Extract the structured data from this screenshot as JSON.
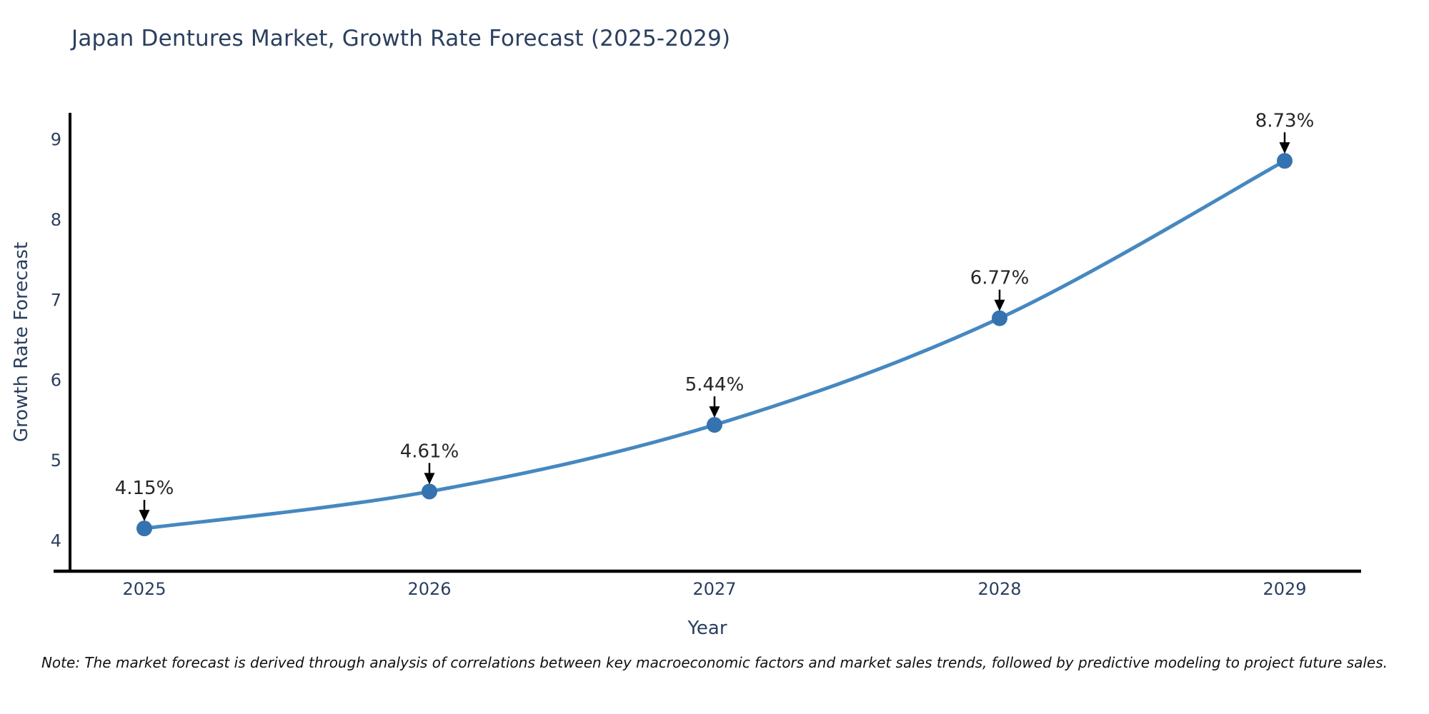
{
  "title": "Japan Dentures Market, Growth Rate Forecast (2025-2029)",
  "note": "Note: The market forecast is derived through analysis of correlations between key macroeconomic factors and market sales trends, followed by predictive modeling to project future sales.",
  "chart_data": {
    "type": "line",
    "line_shape": "spline",
    "title": "Japan Dentures Market, Growth Rate Forecast (2025-2029)",
    "x": [
      "2025",
      "2026",
      "2027",
      "2028",
      "2029"
    ],
    "values": [
      4.15,
      4.61,
      5.44,
      6.77,
      8.73
    ],
    "point_labels": [
      "4.15%",
      "4.61%",
      "5.44%",
      "6.77%",
      "8.73%"
    ],
    "xlabel": "Year",
    "ylabel": "Growth Rate Forecast",
    "yticks": [
      4,
      5,
      6,
      7,
      8,
      9
    ],
    "ylim": [
      3.6,
      9.3
    ],
    "grid": false,
    "legend": "none",
    "markers": true,
    "annotations_arrows": true,
    "colors": {
      "line": "#4688c0",
      "marker": "#3572b0",
      "axis": "#000000",
      "text": "#2a3f5f",
      "annotation": "#262626",
      "note": "#111111"
    }
  }
}
